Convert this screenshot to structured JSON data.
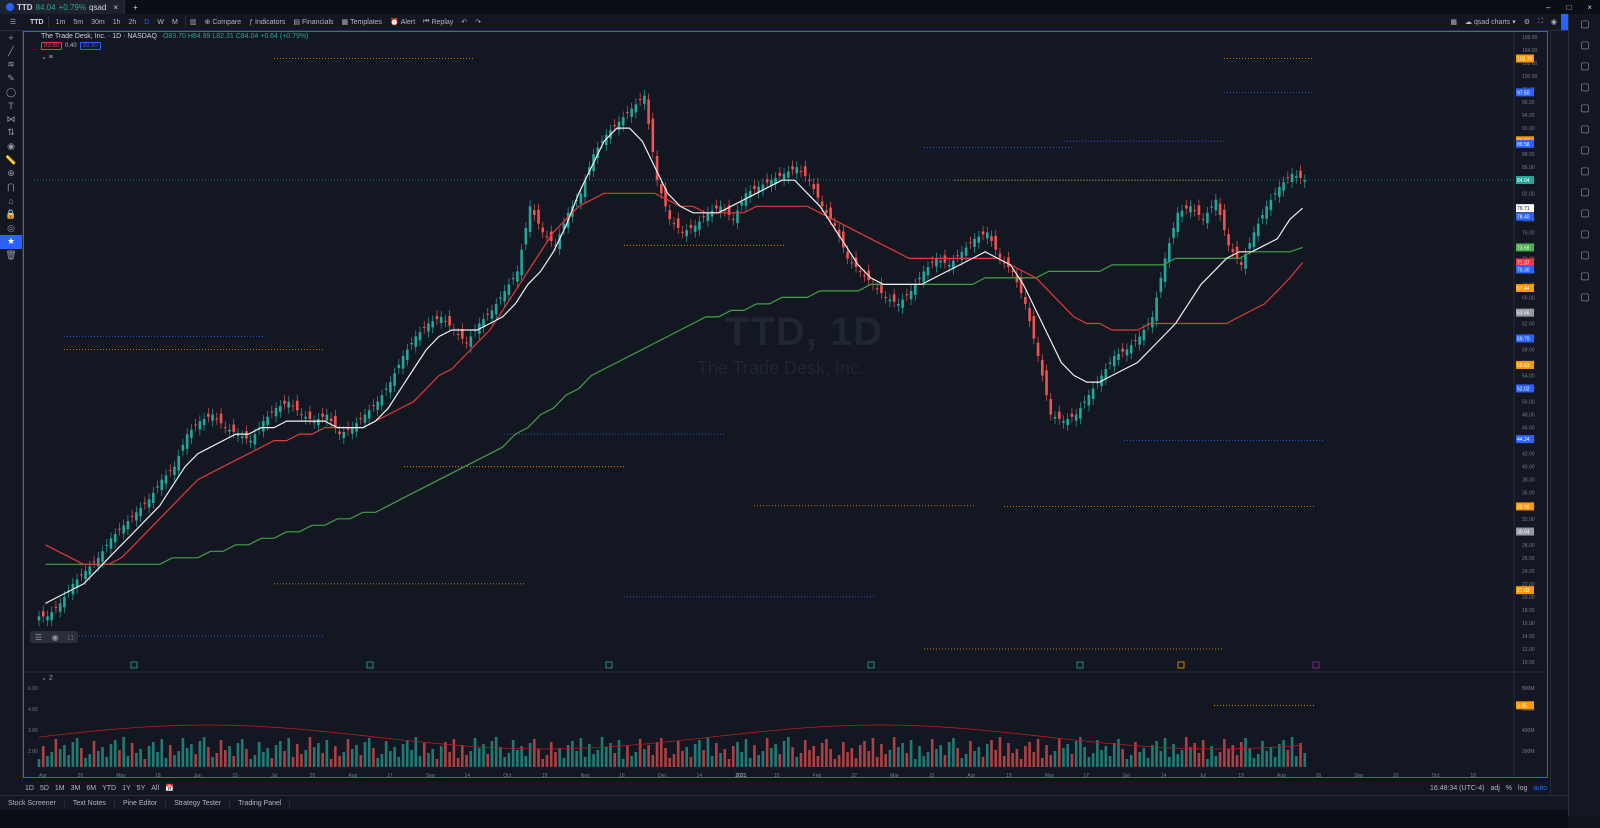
{
  "titlebar": {
    "tab_symbol": "TTD",
    "tab_price": "84.04",
    "tab_change": "+0.79%",
    "tab_extra": "qsad"
  },
  "toolbar": {
    "symbol": "TTD",
    "intervals": [
      "1m",
      "5m",
      "30m",
      "1h",
      "2h",
      "D",
      "W",
      "M"
    ],
    "compare": "Compare",
    "indicators": "Indicators",
    "financials": "Financials",
    "templates": "Templates",
    "alert": "Alert",
    "replay": "Replay",
    "layout": "qsad charts",
    "publish": "Publish"
  },
  "legend": {
    "title": "The Trade Desk, Inc. · 1D · NASDAQ",
    "ohlc": "O83.70 H84.99 L82.31 C84.04 +0.64 (+0.79%)",
    "sell": "83.80",
    "spread": "0.40",
    "buy": "83.90"
  },
  "watermark": {
    "symbol": "TTD, 1D",
    "name": "The Trade Desk, Inc."
  },
  "price_axis": {
    "labels": [
      "106.00",
      "104.00",
      "102.00",
      "100.00",
      "98.00",
      "96.00",
      "94.00",
      "92.00",
      "90.00",
      "88.00",
      "86.00",
      "84.00",
      "82.00",
      "80.00",
      "78.00",
      "76.00",
      "74.00",
      "72.00",
      "70.00",
      "68.00",
      "66.00",
      "64.00",
      "62.00",
      "60.00",
      "58.00",
      "56.00",
      "54.00",
      "52.00",
      "50.00",
      "48.00",
      "46.00",
      "44.00",
      "42.00",
      "40.00",
      "38.00",
      "36.00",
      "34.00",
      "32.00",
      "30.00",
      "28.00",
      "26.00",
      "24.00",
      "22.00",
      "20.00",
      "18.00",
      "16.00",
      "14.00",
      "12.00",
      "10.00"
    ],
    "tags": [
      {
        "v": "102.70",
        "c": "#ff9800"
      },
      {
        "v": "97.50",
        "c": "#2962ff"
      },
      {
        "v": "90.13",
        "c": "#ff9800"
      },
      {
        "v": "89.58",
        "c": "#2962ff"
      },
      {
        "v": "84.04",
        "c": "#26a69a"
      },
      {
        "v": "79.71",
        "c": "#ffffff"
      },
      {
        "v": "78.40",
        "c": "#2962ff"
      },
      {
        "v": "73.68",
        "c": "#4caf50"
      },
      {
        "v": "71.37",
        "c": "#f23645"
      },
      {
        "v": "70.30",
        "c": "#2962ff"
      },
      {
        "v": "67.44",
        "c": "#ff9800"
      },
      {
        "v": "63.66",
        "c": "#9598a1"
      },
      {
        "v": "59.70",
        "c": "#2962ff"
      },
      {
        "v": "55.63",
        "c": "#ff9800"
      },
      {
        "v": "52.02",
        "c": "#2962ff"
      },
      {
        "v": "44.24",
        "c": "#2962ff"
      },
      {
        "v": "33.90",
        "c": "#ff9800"
      },
      {
        "v": "30.04",
        "c": "#9598a1"
      },
      {
        "v": "21.03",
        "c": "#ff9800"
      },
      {
        "v": "3.35",
        "c": "#ff9800"
      }
    ]
  },
  "volume_axis": {
    "labels": [
      "6.00",
      "4.00",
      "3.00",
      "2.00"
    ],
    "right": [
      "800M",
      "600M",
      "400M",
      "200M"
    ],
    "tag": "3.50",
    "tag_right": "3.9M"
  },
  "time_axis": {
    "labels": [
      "Apr",
      "20",
      "May",
      "18",
      "Jun",
      "15",
      "Jul",
      "20",
      "Aug",
      "17",
      "Sep",
      "14",
      "Oct",
      "19",
      "Nov",
      "16",
      "Dec",
      "14",
      "2021",
      "15",
      "Feb",
      "22",
      "Mar",
      "15",
      "Apr",
      "19",
      "May",
      "17",
      "Jun",
      "14",
      "Jul",
      "19",
      "Aug",
      "16",
      "Sep",
      "20",
      "Oct",
      "18"
    ]
  },
  "bottom": {
    "ranges": [
      "1D",
      "5D",
      "1M",
      "3M",
      "6M",
      "YTD",
      "1Y",
      "5Y",
      "All"
    ],
    "time": "16:48:34 (UTC-4)",
    "adj": "adj",
    "pct": "%",
    "log": "log",
    "auto": "auto"
  },
  "panels": [
    "Stock Screener",
    "Text Notes",
    "Pine Editor",
    "Strategy Tester",
    "Trading Panel"
  ],
  "volume_indicator": {
    "label": "2"
  },
  "chart_data": {
    "type": "candlestick",
    "title": "The Trade Desk, Inc. · 1D · NASDAQ",
    "ylim": [
      10,
      106
    ],
    "months": [
      "Apr",
      "May",
      "Jun",
      "Jul",
      "Aug",
      "Sep",
      "Oct",
      "Nov",
      "Dec",
      "2021",
      "Feb",
      "Mar",
      "Apr",
      "May",
      "Jun",
      "Jul",
      "Aug"
    ],
    "close_path": [
      17,
      19,
      22,
      24,
      26,
      29,
      31,
      33,
      35,
      38,
      40,
      45,
      47,
      48,
      46,
      45,
      44,
      47,
      49,
      50,
      48,
      47,
      48,
      45,
      46,
      48,
      50,
      53,
      57,
      60,
      62,
      63,
      61,
      59,
      62,
      64,
      67,
      70,
      80,
      76,
      74,
      79,
      82,
      88,
      91,
      93,
      95,
      97,
      84,
      78,
      76,
      77,
      79,
      80,
      78,
      82,
      83,
      84,
      85,
      86,
      84,
      80,
      77,
      72,
      70,
      68,
      66,
      65,
      67,
      70,
      72,
      71,
      73,
      75,
      76,
      72,
      70,
      65,
      57,
      48,
      47,
      48,
      51,
      54,
      57,
      58,
      60,
      63,
      72,
      79,
      80,
      78,
      81,
      74,
      71,
      76,
      80,
      83,
      85,
      84
    ],
    "ma_white": [
      19,
      20,
      21,
      22,
      24,
      26,
      28,
      30,
      32,
      34,
      37,
      40,
      42,
      43,
      44,
      45,
      45,
      46,
      46,
      47,
      47,
      47,
      47,
      46,
      46,
      46,
      47,
      49,
      52,
      55,
      58,
      60,
      61,
      61,
      61,
      62,
      63,
      65,
      68,
      70,
      73,
      77,
      82,
      86,
      90,
      92,
      92,
      90,
      86,
      82,
      80,
      79,
      79,
      79,
      80,
      81,
      82,
      83,
      84,
      84,
      82,
      80,
      77,
      74,
      71,
      69,
      68,
      68,
      68,
      68,
      69,
      70,
      71,
      72,
      73,
      72,
      71,
      68,
      64,
      60,
      56,
      54,
      53,
      53,
      54,
      55,
      56,
      58,
      60,
      62,
      65,
      68,
      70,
      72,
      73,
      73,
      74,
      75,
      78,
      79.71
    ],
    "ma_red": [
      28,
      27,
      26,
      25,
      25,
      25,
      26,
      28,
      30,
      32,
      34,
      36,
      38,
      39,
      40,
      41,
      42,
      43,
      44,
      44,
      45,
      45,
      46,
      46,
      46,
      46,
      47,
      48,
      49,
      50,
      52,
      54,
      55,
      57,
      59,
      61,
      64,
      67,
      70,
      73,
      76,
      78,
      80,
      81,
      82,
      82,
      82,
      82,
      82,
      81,
      80,
      80,
      79,
      79,
      79,
      79,
      80,
      80,
      80,
      80,
      80,
      79,
      78,
      77,
      76,
      75,
      74,
      73,
      72,
      72,
      72,
      72,
      72,
      72,
      72,
      72,
      71,
      70,
      69,
      67,
      65,
      63,
      62,
      62,
      61,
      61,
      61,
      62,
      62,
      62,
      62,
      62,
      62,
      62,
      63,
      64,
      65,
      67,
      69,
      71.37
    ],
    "ma_green": [
      25,
      25,
      25,
      25,
      25,
      25,
      25,
      25,
      25,
      25,
      26,
      26,
      26,
      27,
      27,
      28,
      28,
      29,
      29,
      30,
      30,
      31,
      31,
      32,
      32,
      33,
      33,
      34,
      35,
      36,
      37,
      38,
      39,
      40,
      41,
      42,
      43,
      45,
      46,
      48,
      49,
      51,
      52,
      54,
      55,
      56,
      57,
      58,
      59,
      60,
      61,
      62,
      63,
      63,
      64,
      64,
      65,
      65,
      66,
      66,
      66,
      67,
      67,
      67,
      67,
      68,
      68,
      68,
      68,
      68,
      68,
      68,
      68,
      68,
      69,
      69,
      69,
      69,
      69,
      70,
      70,
      70,
      70,
      70,
      71,
      71,
      71,
      71,
      71,
      72,
      72,
      72,
      72,
      72,
      72,
      73,
      73,
      73,
      73,
      73.68
    ],
    "volume_series_note": "",
    "last_price": 84.04
  }
}
